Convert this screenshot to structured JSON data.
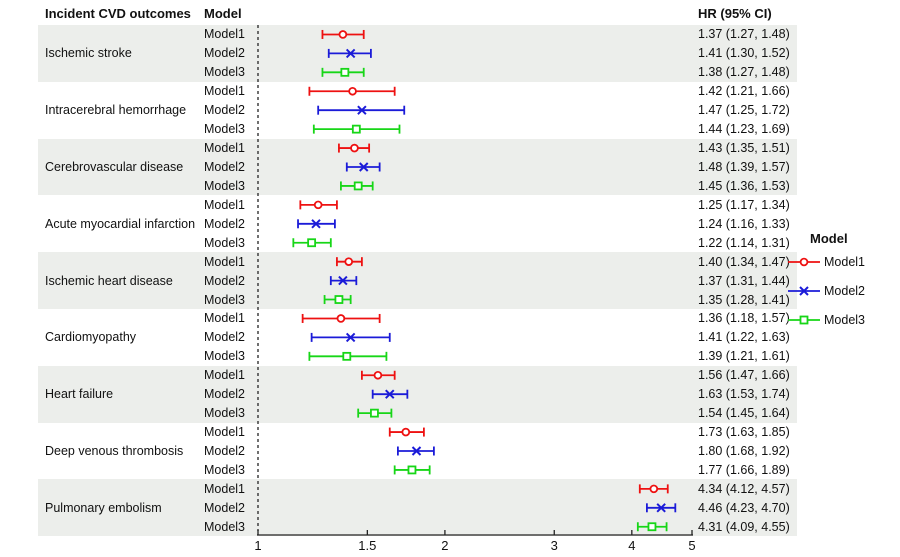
{
  "headers": {
    "outcomes": "Incident CVD outcomes",
    "model": "Model",
    "hr": "HR (95% CI)"
  },
  "legend": {
    "title": "Model",
    "items": [
      "Model1",
      "Model2",
      "Model3"
    ]
  },
  "chart_data": {
    "type": "scatter",
    "variant": "forest-plot",
    "xscale": "log",
    "xlim": [
      1,
      5
    ],
    "xticks": [
      "1",
      "1.5",
      "2",
      "3",
      "4",
      "5"
    ],
    "refline": 1,
    "band_color": "#eceeeb",
    "axis_color": "#222222",
    "refline_color": "#333333",
    "series": [
      {
        "name": "Model1",
        "marker": "circle",
        "color": "#ee1111"
      },
      {
        "name": "Model2",
        "marker": "x",
        "color": "#1b1bd8"
      },
      {
        "name": "Model3",
        "marker": "square",
        "color": "#17d617"
      }
    ],
    "groups": [
      {
        "outcome": "Ischemic stroke",
        "rows": [
          {
            "model": "Model1",
            "hr": 1.37,
            "lo": 1.27,
            "hi": 1.48,
            "label": "1.37 (1.27, 1.48)"
          },
          {
            "model": "Model2",
            "hr": 1.41,
            "lo": 1.3,
            "hi": 1.52,
            "label": "1.41 (1.30, 1.52)"
          },
          {
            "model": "Model3",
            "hr": 1.38,
            "lo": 1.27,
            "hi": 1.48,
            "label": "1.38 (1.27, 1.48)"
          }
        ]
      },
      {
        "outcome": "Intracerebral hemorrhage",
        "rows": [
          {
            "model": "Model1",
            "hr": 1.42,
            "lo": 1.21,
            "hi": 1.66,
            "label": "1.42 (1.21, 1.66)"
          },
          {
            "model": "Model2",
            "hr": 1.47,
            "lo": 1.25,
            "hi": 1.72,
            "label": "1.47 (1.25, 1.72)"
          },
          {
            "model": "Model3",
            "hr": 1.44,
            "lo": 1.23,
            "hi": 1.69,
            "label": "1.44 (1.23, 1.69)"
          }
        ]
      },
      {
        "outcome": "Cerebrovascular disease",
        "rows": [
          {
            "model": "Model1",
            "hr": 1.43,
            "lo": 1.35,
            "hi": 1.51,
            "label": "1.43 (1.35, 1.51)"
          },
          {
            "model": "Model2",
            "hr": 1.48,
            "lo": 1.39,
            "hi": 1.57,
            "label": "1.48 (1.39, 1.57)"
          },
          {
            "model": "Model3",
            "hr": 1.45,
            "lo": 1.36,
            "hi": 1.53,
            "label": "1.45 (1.36, 1.53)"
          }
        ]
      },
      {
        "outcome": "Acute myocardial infarction",
        "rows": [
          {
            "model": "Model1",
            "hr": 1.25,
            "lo": 1.17,
            "hi": 1.34,
            "label": "1.25 (1.17, 1.34)"
          },
          {
            "model": "Model2",
            "hr": 1.24,
            "lo": 1.16,
            "hi": 1.33,
            "label": "1.24 (1.16, 1.33)"
          },
          {
            "model": "Model3",
            "hr": 1.22,
            "lo": 1.14,
            "hi": 1.31,
            "label": "1.22 (1.14, 1.31)"
          }
        ]
      },
      {
        "outcome": "Ischemic heart disease",
        "rows": [
          {
            "model": "Model1",
            "hr": 1.4,
            "lo": 1.34,
            "hi": 1.47,
            "label": "1.40 (1.34, 1.47)"
          },
          {
            "model": "Model2",
            "hr": 1.37,
            "lo": 1.31,
            "hi": 1.44,
            "label": "1.37 (1.31, 1.44)"
          },
          {
            "model": "Model3",
            "hr": 1.35,
            "lo": 1.28,
            "hi": 1.41,
            "label": "1.35 (1.28, 1.41)"
          }
        ]
      },
      {
        "outcome": "Cardiomyopathy",
        "rows": [
          {
            "model": "Model1",
            "hr": 1.36,
            "lo": 1.18,
            "hi": 1.57,
            "label": "1.36 (1.18, 1.57)"
          },
          {
            "model": "Model2",
            "hr": 1.41,
            "lo": 1.22,
            "hi": 1.63,
            "label": "1.41 (1.22, 1.63)"
          },
          {
            "model": "Model3",
            "hr": 1.39,
            "lo": 1.21,
            "hi": 1.61,
            "label": "1.39 (1.21, 1.61)"
          }
        ]
      },
      {
        "outcome": "Heart failure",
        "rows": [
          {
            "model": "Model1",
            "hr": 1.56,
            "lo": 1.47,
            "hi": 1.66,
            "label": "1.56 (1.47, 1.66)"
          },
          {
            "model": "Model2",
            "hr": 1.63,
            "lo": 1.53,
            "hi": 1.74,
            "label": "1.63 (1.53, 1.74)"
          },
          {
            "model": "Model3",
            "hr": 1.54,
            "lo": 1.45,
            "hi": 1.64,
            "label": "1.54 (1.45, 1.64)"
          }
        ]
      },
      {
        "outcome": "Deep venous thrombosis",
        "rows": [
          {
            "model": "Model1",
            "hr": 1.73,
            "lo": 1.63,
            "hi": 1.85,
            "label": "1.73 (1.63, 1.85)"
          },
          {
            "model": "Model2",
            "hr": 1.8,
            "lo": 1.68,
            "hi": 1.92,
            "label": "1.80 (1.68, 1.92)"
          },
          {
            "model": "Model3",
            "hr": 1.77,
            "lo": 1.66,
            "hi": 1.89,
            "label": "1.77 (1.66, 1.89)"
          }
        ]
      },
      {
        "outcome": "Pulmonary embolism",
        "rows": [
          {
            "model": "Model1",
            "hr": 4.34,
            "lo": 4.12,
            "hi": 4.57,
            "label": "4.34 (4.12, 4.57)"
          },
          {
            "model": "Model2",
            "hr": 4.46,
            "lo": 4.23,
            "hi": 4.7,
            "label": "4.46 (4.23, 4.70)"
          },
          {
            "model": "Model3",
            "hr": 4.31,
            "lo": 4.09,
            "hi": 4.55,
            "label": "4.31 (4.09, 4.55)"
          }
        ]
      }
    ]
  }
}
